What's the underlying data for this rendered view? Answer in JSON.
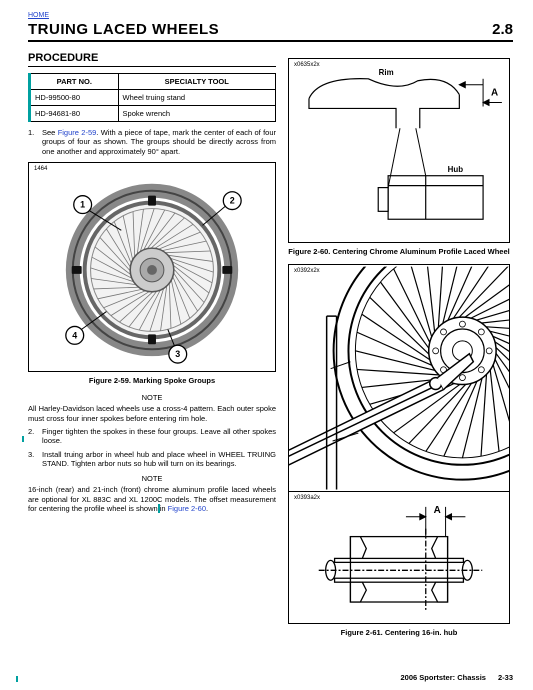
{
  "home": "HOME",
  "title": "TRUING LACED WHEELS",
  "section_num": "2.8",
  "procedure": "PROCEDURE",
  "table": {
    "h1": "PART NO.",
    "h2": "SPECIALTY TOOL",
    "r1c1": "HD-99500-80",
    "r1c2": "Wheel truing stand",
    "r2c1": "HD-94681-80",
    "r2c2": "Spoke wrench"
  },
  "step1_a": "See ",
  "step1_link": "Figure 2-59",
  "step1_b": ". With a piece of tape, mark the center of each of four groups of four as shown. The groups should be directly across from one another and approximately 90° apart.",
  "fig59_code": "1464",
  "fig59_caption": "Figure 2-59. Marking Spoke Groups",
  "note": "NOTE",
  "note1": "All Harley-Davidson laced wheels use a cross-4 pattern. Each outer spoke must cross four inner spokes before entering rim hole.",
  "step2": "Finger tighten the spokes in these four groups. Leave all other spokes loose.",
  "step3": "Install truing arbor in wheel hub and place wheel in WHEEL TRUING STAND. Tighten arbor nuts so hub will turn on its bearings.",
  "note2_a": "16-inch (rear) and 21-inch (front) chrome aluminum profile laced wheels are optional for XL 883C and XL 1200C models. The offset measurement for centering the profile wheel is shown in ",
  "note2_link": "Figure 2-60",
  "note2_b": ".",
  "fig60_code": "x0635x2x",
  "fig60_rim": "Rim",
  "fig60_hub": "Hub",
  "fig60_A": "A",
  "fig60_caption": "Figure 2-60. Centering Chrome Aluminum Profile Laced Wheel",
  "fig61_code_top": "x0392x2x",
  "fig61_code_bot": "x0393a2x",
  "fig61_A": "A",
  "fig61_caption": "Figure 2-61. Centering 16-in. hub",
  "footer": "2006 Sportster: Chassis",
  "pagenum": "2-33"
}
